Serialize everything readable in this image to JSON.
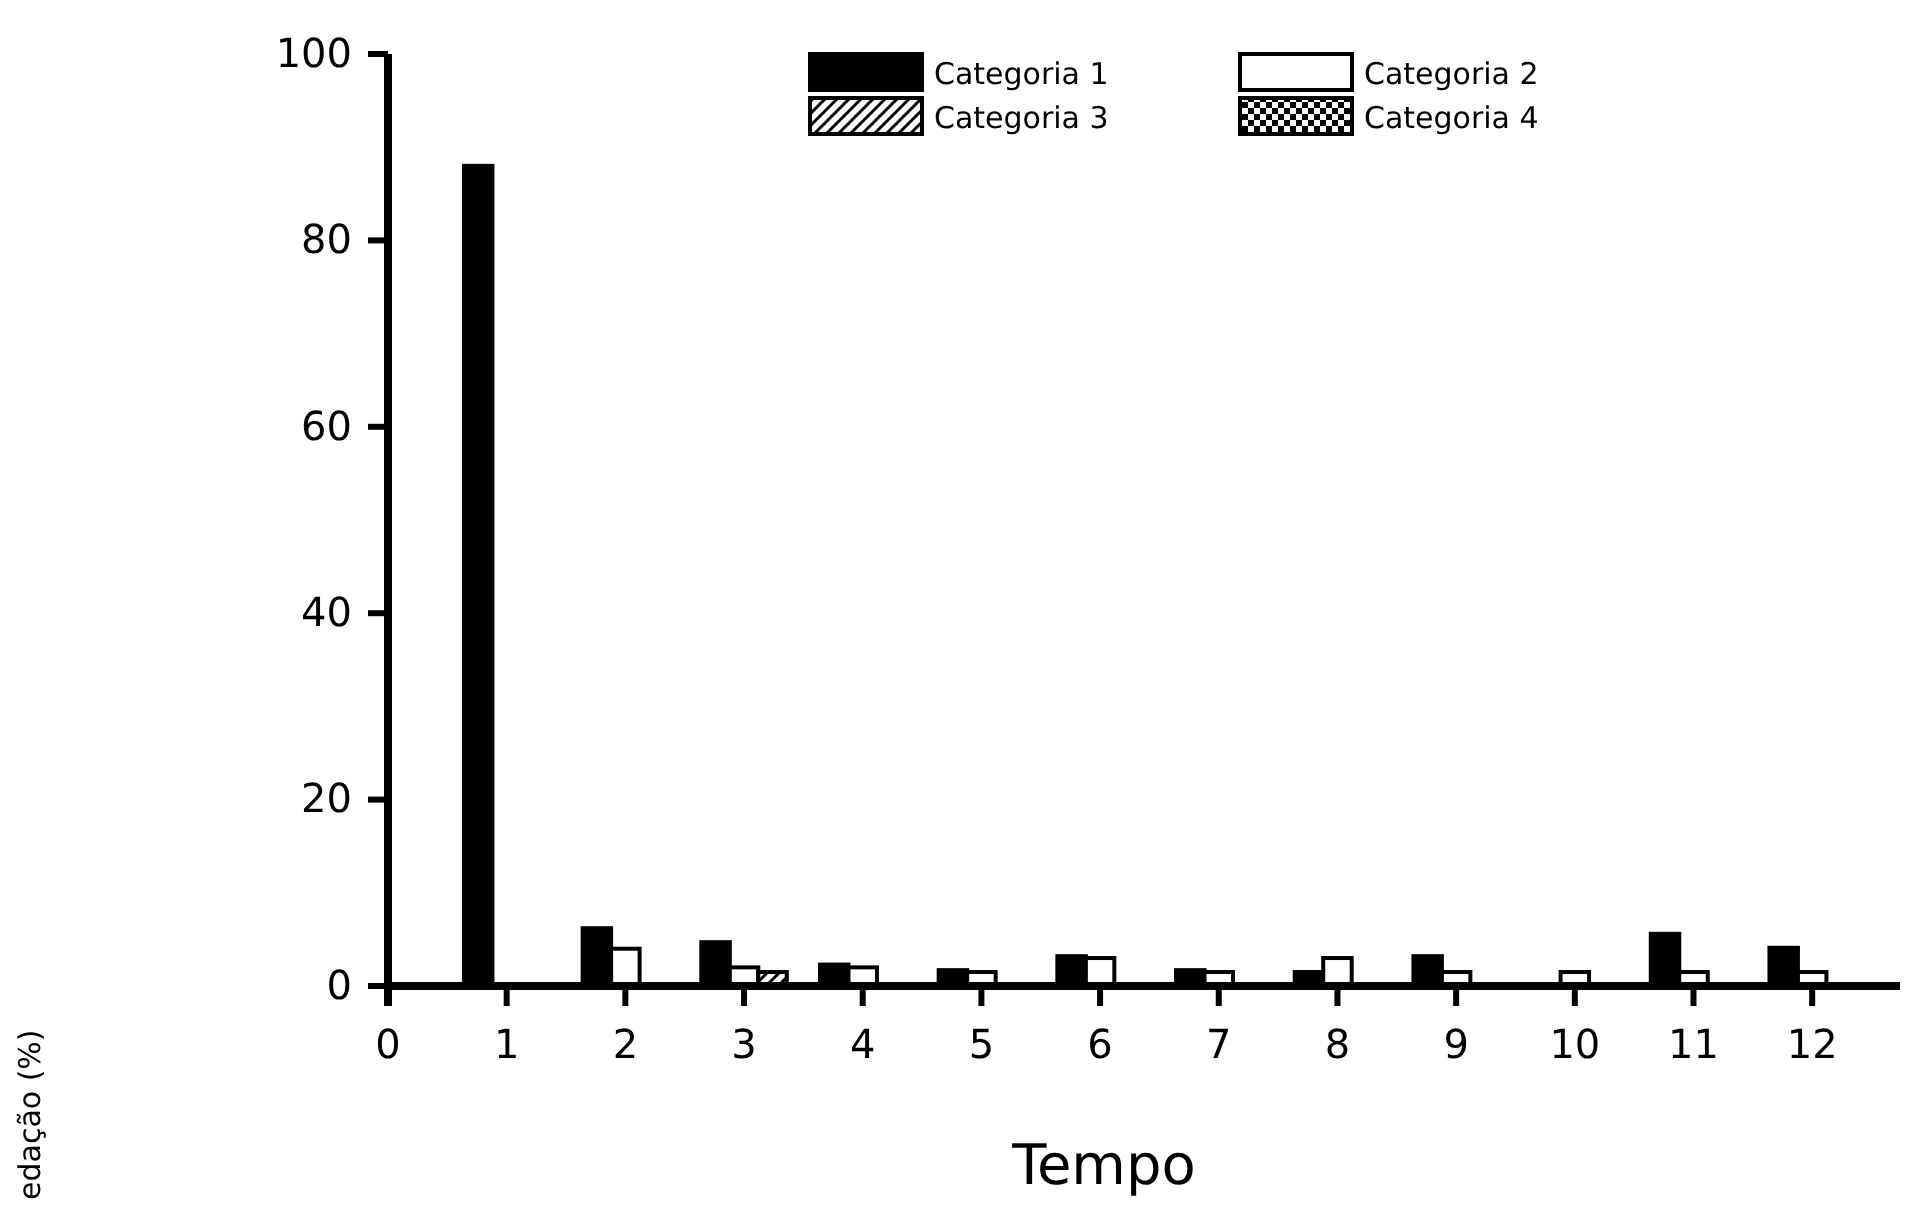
{
  "chart_data": {
    "type": "bar",
    "xlabel": "Tempo",
    "annotations": [
      "edação (%)"
    ],
    "x": [
      1,
      2,
      3,
      4,
      5,
      6,
      7,
      8,
      9,
      10,
      11,
      12
    ],
    "series": [
      {
        "name": "Categoria 1",
        "color": "#000000",
        "values": [
          88,
          6.2,
          4.7,
          2.3,
          1.7,
          3.2,
          1.7,
          1.5,
          3.2,
          null,
          5.6,
          4.1
        ]
      },
      {
        "name": "Categoria 2",
        "color": "#ffffff",
        "values": [
          null,
          4,
          2,
          2,
          1.5,
          3,
          1.5,
          3,
          1.5,
          1.5,
          1.5,
          1.5
        ]
      },
      {
        "name": "Categoria 3",
        "color": "#000000",
        "values": [
          null,
          null,
          1.5,
          null,
          null,
          null,
          null,
          null,
          null,
          null,
          null,
          null
        ]
      },
      {
        "name": "Categoria 4",
        "color": "#000000",
        "values": [
          null,
          null,
          null,
          null,
          null,
          null,
          null,
          null,
          null,
          null,
          null,
          null
        ]
      }
    ],
    "xlim": [
      0,
      12.74
    ],
    "xticks": [
      0,
      1,
      2,
      3,
      4,
      5,
      6,
      7,
      8,
      9,
      10,
      11,
      12
    ],
    "ylim": [
      0,
      100
    ],
    "yticks": [
      0,
      20,
      40,
      60,
      80,
      100
    ],
    "grid": false,
    "legend": "top right"
  }
}
